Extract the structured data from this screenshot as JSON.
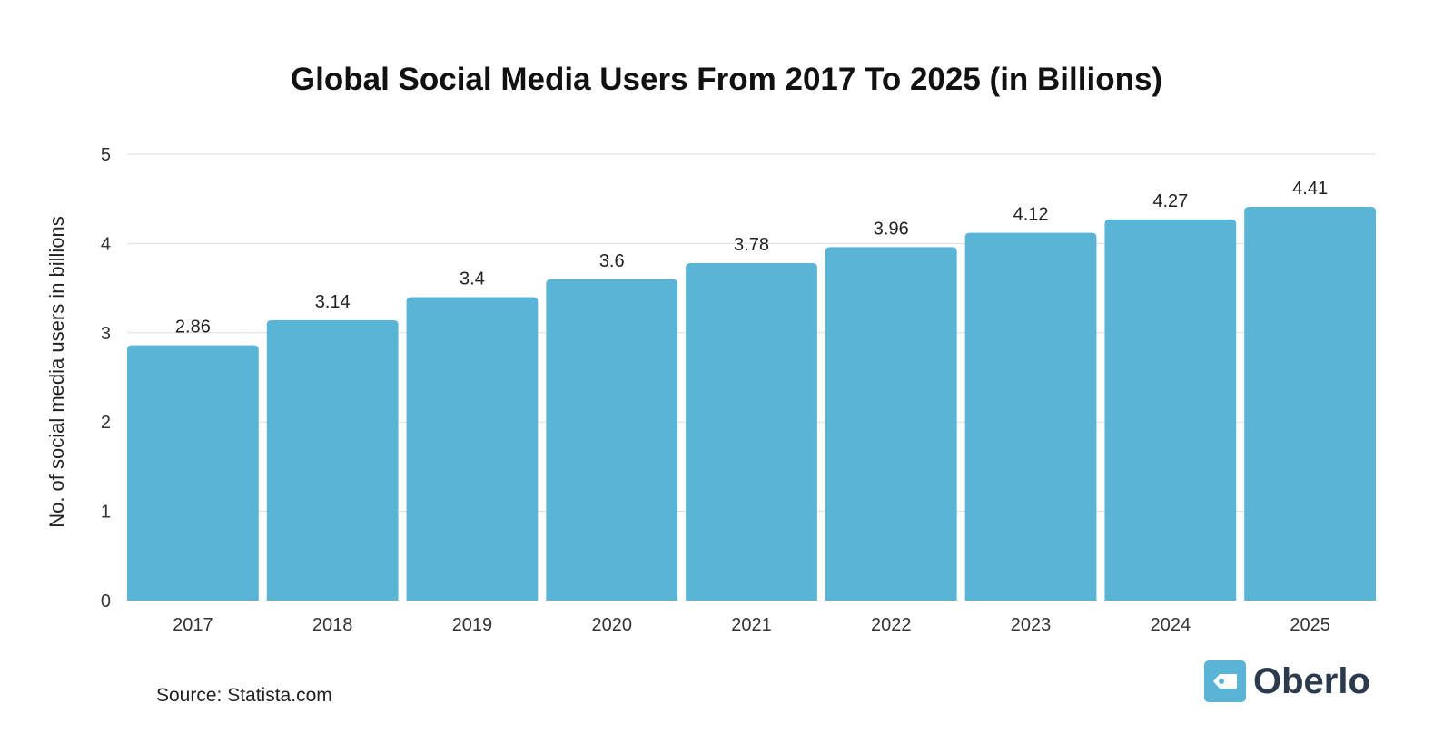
{
  "chart_data": {
    "type": "bar",
    "title": "Global Social Media Users From 2017 To 2025 (in Billions)",
    "xlabel": "",
    "ylabel": "No. of social media users in billions",
    "categories": [
      "2017",
      "2018",
      "2019",
      "2020",
      "2021",
      "2022",
      "2023",
      "2024",
      "2025"
    ],
    "values": [
      2.86,
      3.14,
      3.4,
      3.6,
      3.78,
      3.96,
      4.12,
      4.27,
      4.41
    ],
    "data_labels": [
      "2.86",
      "3.14",
      "3.4",
      "3.6",
      "3.78",
      "3.96",
      "4.12",
      "4.27",
      "4.41"
    ],
    "ylim": [
      0,
      5
    ],
    "yticks": [
      "0",
      "1",
      "2",
      "3",
      "4",
      "5"
    ],
    "grid": true,
    "bar_color": "#5ab4d6"
  },
  "source": "Source: Statista.com",
  "logo": {
    "text": "Oberlo",
    "icon": "tag-icon",
    "color": "#5ab4d6"
  }
}
